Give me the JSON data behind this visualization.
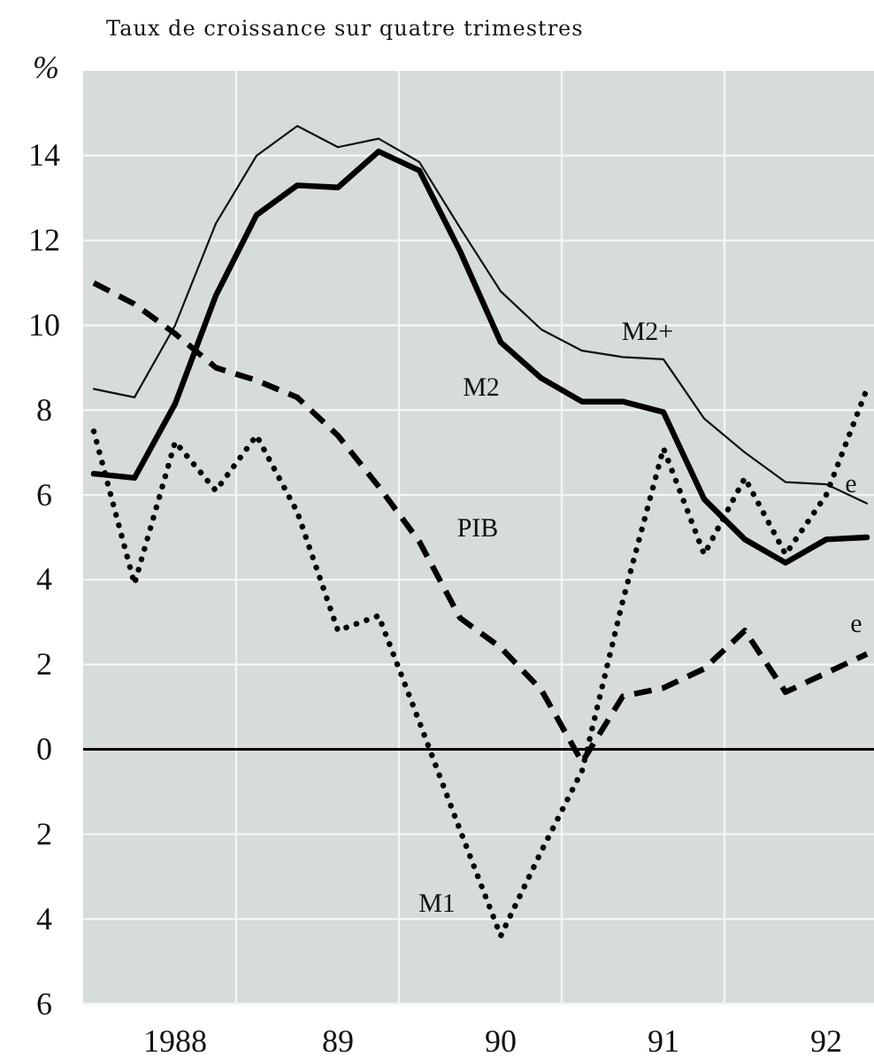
{
  "chart_data": {
    "type": "line",
    "title": "Taux de croissance sur quatre trimestres",
    "ylabel": "%",
    "categories": [
      null,
      null,
      "1988",
      null,
      null,
      null,
      "89",
      null,
      null,
      null,
      "90",
      null,
      null,
      null,
      "91",
      null,
      null,
      null,
      "92",
      null
    ],
    "series": [
      {
        "name": "M2+",
        "color": "#111111",
        "line_style": "solid",
        "values": [
          8.5,
          8.3,
          10.0,
          12.4,
          14.0,
          14.7,
          14.2,
          14.4,
          13.85,
          12.3,
          10.8,
          9.9,
          9.4,
          9.25,
          9.2,
          7.8,
          7.0,
          6.3,
          6.25,
          5.8
        ]
      },
      {
        "name": "M2",
        "color": "#000000",
        "line_style": "solid",
        "values": [
          6.5,
          6.4,
          8.15,
          10.7,
          12.6,
          13.3,
          13.25,
          14.1,
          13.65,
          11.75,
          9.6,
          8.75,
          8.2,
          8.2,
          7.95,
          5.9,
          4.95,
          4.4,
          4.95,
          5.0
        ]
      },
      {
        "name": "PIB",
        "color": "#000000",
        "line_style": "dashed",
        "values": [
          11.0,
          10.5,
          9.8,
          9.0,
          8.7,
          8.3,
          7.4,
          6.2,
          4.9,
          3.1,
          2.4,
          1.4,
          -0.3,
          1.25,
          1.45,
          1.9,
          2.8,
          1.35,
          1.8,
          2.25
        ]
      },
      {
        "name": "M1",
        "color": "#000000",
        "line_style": "dotted",
        "values": [
          7.5,
          3.9,
          7.25,
          6.1,
          7.4,
          5.6,
          2.8,
          3.15,
          0.65,
          -1.9,
          -4.4,
          -2.4,
          -0.5,
          3.5,
          7.1,
          4.6,
          6.4,
          4.6,
          6.0,
          8.5
        ]
      }
    ],
    "annotations": [
      "e",
      "e"
    ],
    "ylim": [
      -6,
      16
    ],
    "yticks": [
      {
        "value": -6,
        "label": "6"
      },
      {
        "value": -4,
        "label": "4"
      },
      {
        "value": -2,
        "label": "2"
      },
      0,
      2,
      4,
      6,
      8,
      10,
      12,
      14
    ],
    "ref_lines": [
      {
        "axis": "y",
        "value": 0,
        "color": "#000000",
        "line_style": "solid"
      }
    ],
    "grid": true,
    "marker": "none"
  }
}
